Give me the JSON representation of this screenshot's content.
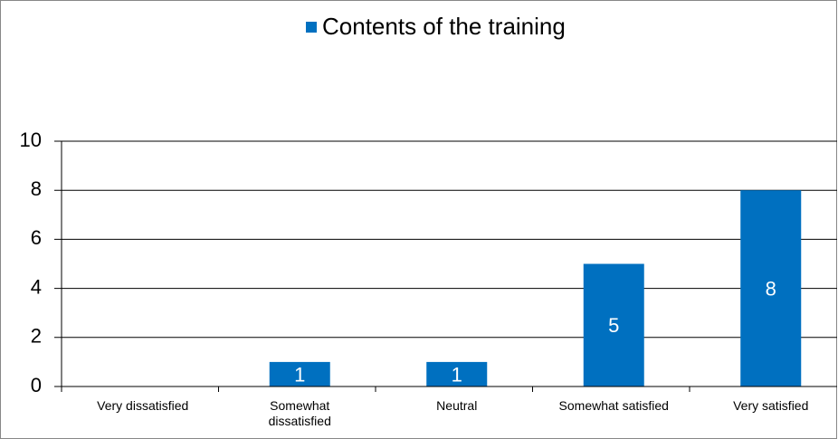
{
  "chart_data": {
    "type": "bar",
    "legend": "Contents of the training",
    "categories": [
      "Very dissatisfied",
      "Somewhat dissatisfied",
      "Neutral",
      "Somewhat satisfied",
      "Very satisfied"
    ],
    "values": [
      0,
      1,
      1,
      5,
      8
    ],
    "color": "#0070c0",
    "ylim": [
      0,
      10
    ],
    "yticks": [
      0,
      2,
      4,
      6,
      8,
      10
    ],
    "grid": true,
    "data_labels": true,
    "legend_position": "top"
  }
}
